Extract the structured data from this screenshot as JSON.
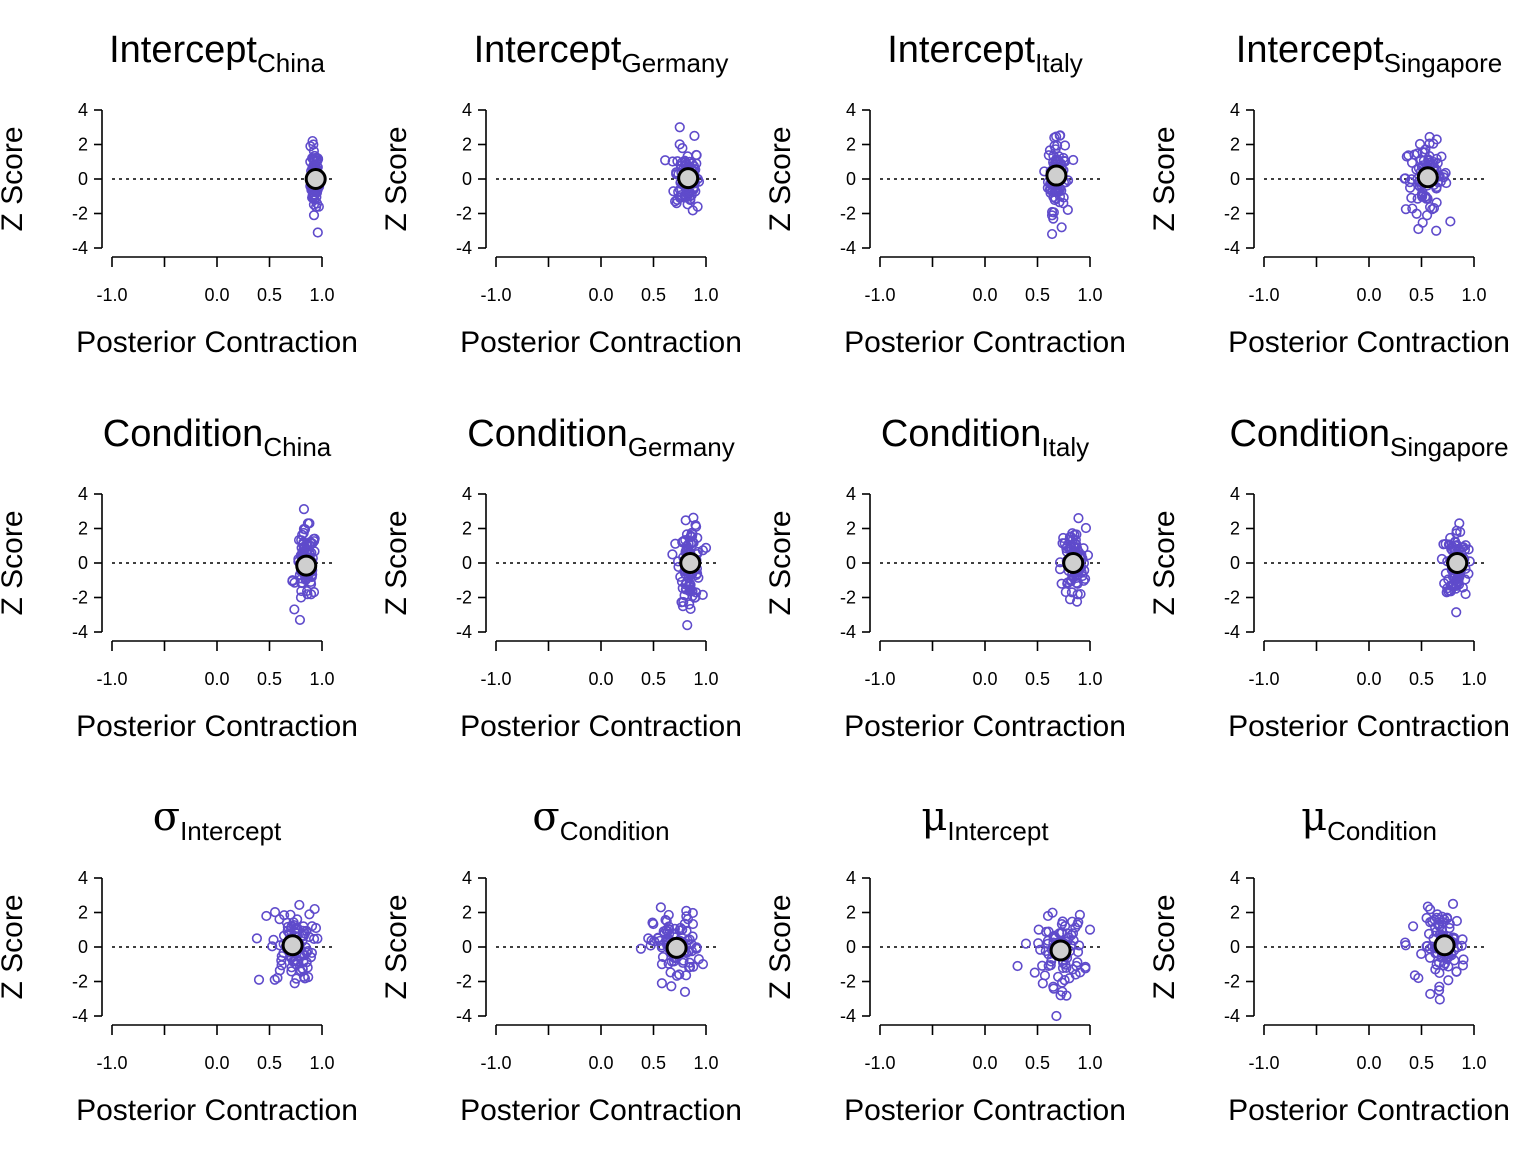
{
  "colors": {
    "point": "#5f4bcb",
    "mean_fill": "#cfcfcf",
    "mean_stroke": "#000000",
    "axis": "#000000"
  },
  "chart_data": [
    {
      "type": "scatter",
      "title": {
        "main": "Intercept",
        "sub": "China"
      },
      "xlabel": "Posterior Contraction",
      "ylabel": "Z Score",
      "xlim": [
        -1,
        1
      ],
      "ylim": [
        -4,
        4
      ],
      "xticks": [
        "-1.0",
        "0.0",
        "0.5",
        "1.0"
      ],
      "yticks": [
        "4",
        "2",
        "0",
        "-2",
        "-4"
      ],
      "reference_line": 0,
      "mean": {
        "x": 0.94,
        "y": 0.0
      },
      "cluster": {
        "x_center": 0.93,
        "x_spread": 0.02,
        "y_spread": 0.8
      },
      "outliers": [
        {
          "x": 0.91,
          "y": 2.2
        },
        {
          "x": 0.96,
          "y": -3.1
        },
        {
          "x": 0.89,
          "y": 1.9
        },
        {
          "x": 0.97,
          "y": -1.6
        }
      ]
    },
    {
      "type": "scatter",
      "title": {
        "main": "Intercept",
        "sub": "Germany"
      },
      "xlabel": "Posterior Contraction",
      "ylabel": "Z Score",
      "xlim": [
        -1,
        1
      ],
      "ylim": [
        -4,
        4
      ],
      "xticks": [
        "-1.0",
        "0.0",
        "0.5",
        "1.0"
      ],
      "yticks": [
        "4",
        "2",
        "0",
        "-2",
        "-4"
      ],
      "reference_line": 0,
      "mean": {
        "x": 0.83,
        "y": 0.05
      },
      "cluster": {
        "x_center": 0.82,
        "x_spread": 0.06,
        "y_spread": 0.9
      },
      "outliers": [
        {
          "x": 0.75,
          "y": 3.0
        },
        {
          "x": 0.89,
          "y": 2.5
        },
        {
          "x": 0.72,
          "y": -1.4
        },
        {
          "x": 0.92,
          "y": -1.6
        }
      ]
    },
    {
      "type": "scatter",
      "title": {
        "main": "Intercept",
        "sub": "Italy"
      },
      "xlabel": "Posterior Contraction",
      "ylabel": "Z Score",
      "xlim": [
        -1,
        1
      ],
      "ylim": [
        -4,
        4
      ],
      "xticks": [
        "-1.0",
        "0.0",
        "0.5",
        "1.0"
      ],
      "yticks": [
        "4",
        "2",
        "0",
        "-2",
        "-4"
      ],
      "reference_line": 0,
      "mean": {
        "x": 0.68,
        "y": 0.2
      },
      "cluster": {
        "x_center": 0.68,
        "x_spread": 0.04,
        "y_spread": 1.0
      },
      "outliers": [
        {
          "x": 0.66,
          "y": 2.4
        },
        {
          "x": 0.73,
          "y": -2.8
        },
        {
          "x": 0.84,
          "y": 1.1
        },
        {
          "x": 0.65,
          "y": -2.3
        }
      ]
    },
    {
      "type": "scatter",
      "title": {
        "main": "Intercept",
        "sub": "Singapore"
      },
      "xlabel": "Posterior Contraction",
      "ylabel": "Z Score",
      "xlim": [
        -1,
        1
      ],
      "ylim": [
        -4,
        4
      ],
      "xticks": [
        "-1.0",
        "0.0",
        "0.5",
        "1.0"
      ],
      "yticks": [
        "4",
        "2",
        "0",
        "-2",
        "-4"
      ],
      "reference_line": 0,
      "mean": {
        "x": 0.56,
        "y": 0.1
      },
      "cluster": {
        "x_center": 0.55,
        "x_spread": 0.1,
        "y_spread": 1.0
      },
      "outliers": [
        {
          "x": 0.36,
          "y": 1.3
        },
        {
          "x": 0.47,
          "y": -2.9
        },
        {
          "x": 0.64,
          "y": -3.0
        },
        {
          "x": 0.69,
          "y": 1.3
        }
      ]
    },
    {
      "type": "scatter",
      "title": {
        "main": "Condition",
        "sub": "China"
      },
      "xlabel": "Posterior Contraction",
      "ylabel": "Z Score",
      "xlim": [
        -1,
        1
      ],
      "ylim": [
        -4,
        4
      ],
      "xticks": [
        "-1.0",
        "0.0",
        "0.5",
        "1.0"
      ],
      "yticks": [
        "4",
        "2",
        "0",
        "-2",
        "-4"
      ],
      "reference_line": 0,
      "mean": {
        "x": 0.85,
        "y": -0.15
      },
      "cluster": {
        "x_center": 0.85,
        "x_spread": 0.05,
        "y_spread": 1.0
      },
      "outliers": [
        {
          "x": 0.79,
          "y": -3.3
        },
        {
          "x": 0.88,
          "y": 2.3
        },
        {
          "x": 0.72,
          "y": -1.0
        },
        {
          "x": 0.8,
          "y": -2.0
        }
      ]
    },
    {
      "type": "scatter",
      "title": {
        "main": "Condition",
        "sub": "Germany"
      },
      "xlabel": "Posterior Contraction",
      "ylabel": "Z Score",
      "xlim": [
        -1,
        1
      ],
      "ylim": [
        -4,
        4
      ],
      "xticks": [
        "-1.0",
        "0.0",
        "0.5",
        "1.0"
      ],
      "yticks": [
        "4",
        "2",
        "0",
        "-2",
        "-4"
      ],
      "reference_line": 0,
      "mean": {
        "x": 0.85,
        "y": 0.0
      },
      "cluster": {
        "x_center": 0.85,
        "x_spread": 0.05,
        "y_spread": 1.1
      },
      "outliers": [
        {
          "x": 0.78,
          "y": -2.5
        },
        {
          "x": 0.9,
          "y": 2.2
        },
        {
          "x": 0.68,
          "y": 0.5
        },
        {
          "x": 0.84,
          "y": -2.4
        }
      ]
    },
    {
      "type": "scatter",
      "title": {
        "main": "Condition",
        "sub": "Italy"
      },
      "xlabel": "Posterior Contraction",
      "ylabel": "Z Score",
      "xlim": [
        -1,
        1
      ],
      "ylim": [
        -4,
        4
      ],
      "xticks": [
        "-1.0",
        "0.0",
        "0.5",
        "1.0"
      ],
      "yticks": [
        "4",
        "2",
        "0",
        "-2",
        "-4"
      ],
      "reference_line": 0,
      "mean": {
        "x": 0.84,
        "y": 0.0
      },
      "cluster": {
        "x_center": 0.84,
        "x_spread": 0.06,
        "y_spread": 1.0
      },
      "outliers": [
        {
          "x": 0.89,
          "y": 2.6
        },
        {
          "x": 0.73,
          "y": -1.2
        },
        {
          "x": 0.81,
          "y": -2.1
        },
        {
          "x": 0.91,
          "y": -1.8
        }
      ]
    },
    {
      "type": "scatter",
      "title": {
        "main": "Condition",
        "sub": "Singapore"
      },
      "xlabel": "Posterior Contraction",
      "ylabel": "Z Score",
      "xlim": [
        -1,
        1
      ],
      "ylim": [
        -4,
        4
      ],
      "xticks": [
        "-1.0",
        "0.0",
        "0.5",
        "1.0"
      ],
      "yticks": [
        "4",
        "2",
        "0",
        "-2",
        "-4"
      ],
      "reference_line": 0,
      "mean": {
        "x": 0.84,
        "y": 0.0
      },
      "cluster": {
        "x_center": 0.84,
        "x_spread": 0.05,
        "y_spread": 1.0
      },
      "outliers": [
        {
          "x": 0.86,
          "y": 2.3
        },
        {
          "x": 0.74,
          "y": -1.7
        },
        {
          "x": 0.92,
          "y": -1.8
        },
        {
          "x": 0.73,
          "y": 1.1
        }
      ]
    },
    {
      "type": "scatter",
      "title": {
        "greek": "σ",
        "sub": "Intercept"
      },
      "xlabel": "Posterior Contraction",
      "ylabel": "Z Score",
      "xlim": [
        -1,
        1
      ],
      "ylim": [
        -4,
        4
      ],
      "xticks": [
        "-1.0",
        "0.0",
        "0.5",
        "1.0"
      ],
      "yticks": [
        "4",
        "2",
        "0",
        "-2",
        "-4"
      ],
      "reference_line": 0,
      "mean": {
        "x": 0.72,
        "y": 0.1
      },
      "cluster": {
        "x_center": 0.72,
        "x_spread": 0.1,
        "y_spread": 1.0
      },
      "outliers": [
        {
          "x": 0.4,
          "y": -1.9
        },
        {
          "x": 0.55,
          "y": -1.9
        },
        {
          "x": 0.38,
          "y": 0.5
        },
        {
          "x": 0.47,
          "y": 1.8
        },
        {
          "x": 0.93,
          "y": 2.2
        },
        {
          "x": 0.74,
          "y": -2.1
        }
      ]
    },
    {
      "type": "scatter",
      "title": {
        "greek": "σ",
        "sub": "Condition"
      },
      "xlabel": "Posterior Contraction",
      "ylabel": "Z Score",
      "xlim": [
        -1,
        1
      ],
      "ylim": [
        -4,
        4
      ],
      "xticks": [
        "-1.0",
        "0.0",
        "0.5",
        "1.0"
      ],
      "yticks": [
        "4",
        "2",
        "0",
        "-2",
        "-4"
      ],
      "reference_line": 0,
      "mean": {
        "x": 0.72,
        "y": -0.05
      },
      "cluster": {
        "x_center": 0.72,
        "x_spread": 0.11,
        "y_spread": 1.0
      },
      "outliers": [
        {
          "x": 0.38,
          "y": -0.1
        },
        {
          "x": 0.57,
          "y": 2.3
        },
        {
          "x": 0.8,
          "y": -2.6
        },
        {
          "x": 0.58,
          "y": -2.1
        },
        {
          "x": 0.45,
          "y": 0.5
        }
      ]
    },
    {
      "type": "scatter",
      "title": {
        "greek": "μ",
        "sub": "Intercept"
      },
      "xlabel": "Posterior Contraction",
      "ylabel": "Z Score",
      "xlim": [
        -1,
        1
      ],
      "ylim": [
        -4,
        4
      ],
      "xticks": [
        "-1.0",
        "0.0",
        "0.5",
        "1.0"
      ],
      "yticks": [
        "4",
        "2",
        "0",
        "-2",
        "-4"
      ],
      "reference_line": 0,
      "mean": {
        "x": 0.72,
        "y": -0.2
      },
      "cluster": {
        "x_center": 0.72,
        "x_spread": 0.11,
        "y_spread": 1.0
      },
      "outliers": [
        {
          "x": 0.31,
          "y": -1.1
        },
        {
          "x": 0.68,
          "y": -4.0
        },
        {
          "x": 0.72,
          "y": -2.8
        },
        {
          "x": 0.6,
          "y": 1.8
        },
        {
          "x": 0.88,
          "y": 1.3
        }
      ]
    },
    {
      "type": "scatter",
      "title": {
        "greek": "μ",
        "sub": "Condition"
      },
      "xlabel": "Posterior Contraction",
      "ylabel": "Z Score",
      "xlim": [
        -1,
        1
      ],
      "ylim": [
        -4,
        4
      ],
      "xticks": [
        "-1.0",
        "0.0",
        "0.5",
        "1.0"
      ],
      "yticks": [
        "4",
        "2",
        "0",
        "-2",
        "-4"
      ],
      "reference_line": 0,
      "mean": {
        "x": 0.72,
        "y": 0.1
      },
      "cluster": {
        "x_center": 0.72,
        "x_spread": 0.1,
        "y_spread": 1.0
      },
      "outliers": [
        {
          "x": 0.35,
          "y": 0.1
        },
        {
          "x": 0.47,
          "y": -1.8
        },
        {
          "x": 0.42,
          "y": 1.2
        },
        {
          "x": 0.8,
          "y": 2.5
        },
        {
          "x": 0.67,
          "y": -2.3
        }
      ]
    }
  ]
}
